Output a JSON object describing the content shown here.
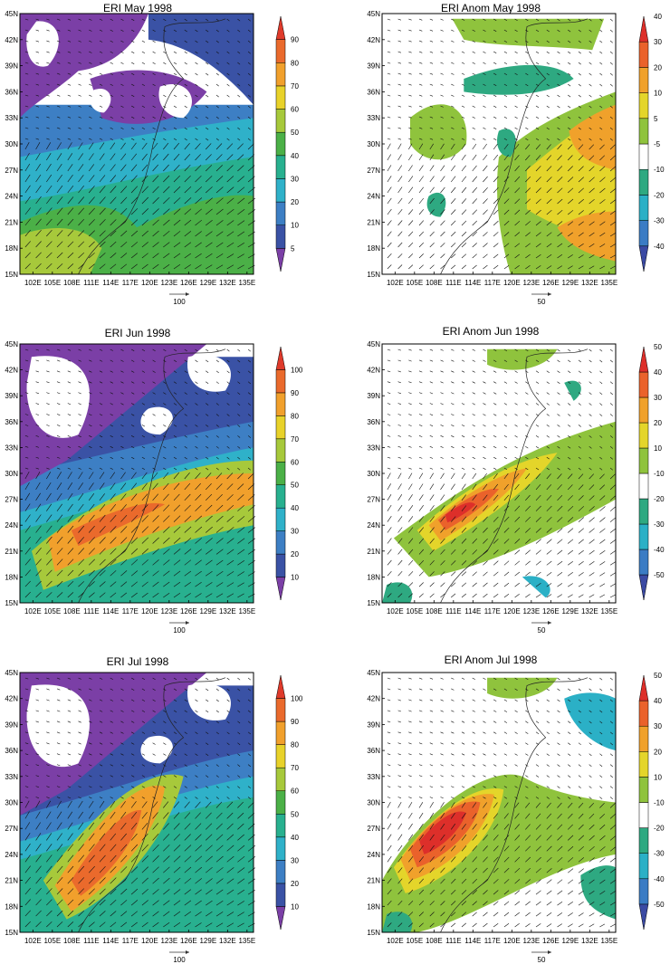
{
  "figure": {
    "xticks": [
      "102E",
      "105E",
      "108E",
      "111E",
      "114E",
      "117E",
      "120E",
      "123E",
      "126E",
      "129E",
      "132E",
      "135E"
    ],
    "yticks": [
      "15N",
      "18N",
      "21N",
      "24N",
      "27N",
      "30N",
      "33N",
      "36N",
      "39N",
      "42N",
      "45N"
    ]
  },
  "chart_data": [
    {
      "type": "heatmap",
      "title": "ERI May 1998",
      "xlim": [
        100,
        136
      ],
      "ylim": [
        15,
        45
      ],
      "colorbar": {
        "labels": [
          "5",
          "10",
          "20",
          "30",
          "40",
          "50",
          "60",
          "70",
          "80",
          "90"
        ],
        "levels": [
          5,
          10,
          20,
          30,
          40,
          50,
          60,
          70,
          80,
          90
        ]
      },
      "reference_vector": "100",
      "legend": "right"
    },
    {
      "type": "heatmap",
      "title": "ERI Anom May 1998",
      "xlim": [
        100,
        136
      ],
      "ylim": [
        15,
        45
      ],
      "colorbar": {
        "labels": [
          "-40",
          "-30",
          "-20",
          "-10",
          "-5",
          "5",
          "10",
          "20",
          "30",
          "40"
        ],
        "levels": [
          -40,
          -30,
          -20,
          -10,
          -5,
          5,
          10,
          20,
          30,
          40
        ]
      },
      "reference_vector": "50",
      "legend": "right"
    },
    {
      "type": "heatmap",
      "title": "ERI Jun 1998",
      "xlim": [
        100,
        136
      ],
      "ylim": [
        15,
        45
      ],
      "colorbar": {
        "labels": [
          "10",
          "20",
          "30",
          "40",
          "50",
          "60",
          "70",
          "80",
          "90",
          "100"
        ],
        "levels": [
          10,
          20,
          30,
          40,
          50,
          60,
          70,
          80,
          90,
          100
        ]
      },
      "reference_vector": "100",
      "legend": "right"
    },
    {
      "type": "heatmap",
      "title": "ERI Anom Jun 1998",
      "xlim": [
        100,
        136
      ],
      "ylim": [
        15,
        45
      ],
      "colorbar": {
        "labels": [
          "-50",
          "-40",
          "-30",
          "-20",
          "-10",
          "10",
          "20",
          "30",
          "40",
          "50"
        ],
        "levels": [
          -50,
          -40,
          -30,
          -20,
          -10,
          10,
          20,
          30,
          40,
          50
        ]
      },
      "reference_vector": "50",
      "legend": "right"
    },
    {
      "type": "heatmap",
      "title": "ERI Jul 1998",
      "xlim": [
        100,
        136
      ],
      "ylim": [
        15,
        45
      ],
      "colorbar": {
        "labels": [
          "10",
          "20",
          "30",
          "40",
          "50",
          "60",
          "70",
          "80",
          "90",
          "100"
        ],
        "levels": [
          10,
          20,
          30,
          40,
          50,
          60,
          70,
          80,
          90,
          100
        ]
      },
      "reference_vector": "100",
      "legend": "right"
    },
    {
      "type": "heatmap",
      "title": "ERI Anom Jul 1998",
      "xlim": [
        100,
        136
      ],
      "ylim": [
        15,
        45
      ],
      "colorbar": {
        "labels": [
          "-50",
          "-40",
          "-30",
          "-20",
          "-10",
          "10",
          "20",
          "30",
          "40",
          "50"
        ],
        "levels": [
          -50,
          -40,
          -30,
          -20,
          -10,
          10,
          20,
          30,
          40,
          50
        ]
      },
      "reference_vector": "50",
      "legend": "right"
    }
  ],
  "colors": {
    "full_scale": [
      "#7b3fa6",
      "#3a52a5",
      "#3d7fc4",
      "#2fb1c9",
      "#28b08f",
      "#4bb047",
      "#a7c93b",
      "#e8d22a",
      "#f1a02c",
      "#ea6a2c",
      "#df3a2b"
    ],
    "anom_scale": [
      "#3b4aa3",
      "#3b7cc4",
      "#2bb0c6",
      "#2ea981",
      "#ffffff",
      "#8fc33d",
      "#e4d52a",
      "#f0a12b",
      "#ea622b",
      "#dd2f2a"
    ]
  }
}
